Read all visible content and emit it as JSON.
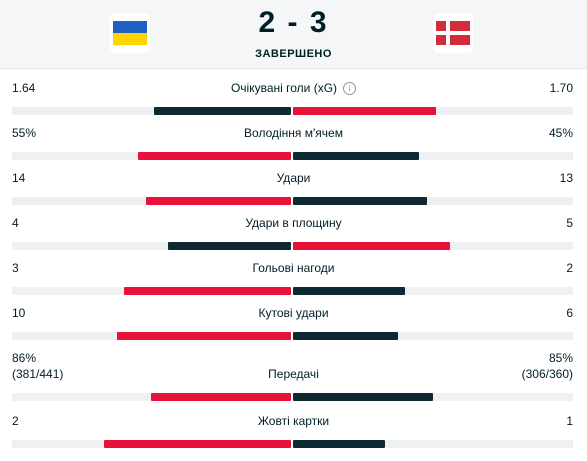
{
  "match": {
    "home_flag": "ukraine-flag",
    "away_flag": "denmark-flag",
    "score": "2 - 3",
    "status": "ЗАВЕРШЕНО"
  },
  "colors": {
    "leading": "#e8113a",
    "trailing": "#0f2933",
    "track": "#eef0f1"
  },
  "stats": [
    {
      "label": "Очікувані голи (xG)",
      "home": "1.64",
      "away": "1.70",
      "home_share": 0.49,
      "away_share": 0.51,
      "info": true
    },
    {
      "label": "Володіння м'ячем",
      "home": "55%",
      "away": "45%",
      "home_share": 0.55,
      "away_share": 0.45
    },
    {
      "label": "Удари",
      "home": "14",
      "away": "13",
      "home_share": 0.52,
      "away_share": 0.48
    },
    {
      "label": "Удари в площину",
      "home": "4",
      "away": "5",
      "home_share": 0.44,
      "away_share": 0.56
    },
    {
      "label": "Гольові нагоди",
      "home": "3",
      "away": "2",
      "home_share": 0.6,
      "away_share": 0.4
    },
    {
      "label": "Кутові удари",
      "home": "10",
      "away": "6",
      "home_share": 0.625,
      "away_share": 0.375
    },
    {
      "label": "Передачі",
      "home": "86%",
      "home_detail": "(381/441)",
      "away": "85%",
      "away_detail": "(306/360)",
      "home_share": 0.5,
      "away_share": 0.5
    },
    {
      "label": "Жовті картки",
      "home": "2",
      "away": "1",
      "home_share": 0.67,
      "away_share": 0.33
    }
  ]
}
